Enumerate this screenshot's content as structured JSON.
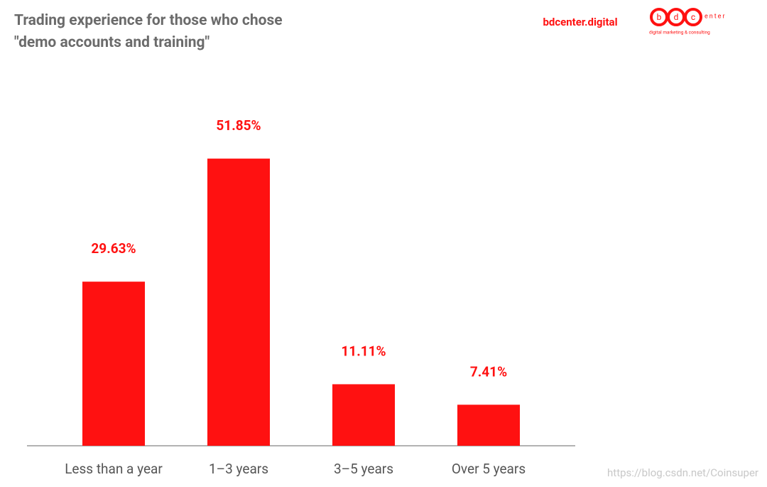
{
  "chart_data": {
    "type": "bar",
    "title": "Trading experience for those who chose \"demo accounts and training\"",
    "categories": [
      "Less than a year",
      "1–3 years",
      "3–5 years",
      "Over 5 years"
    ],
    "values": [
      29.63,
      51.85,
      11.11,
      7.41
    ],
    "value_labels": [
      "29.63%",
      "51.85%",
      "11.11%",
      "7.41%"
    ],
    "color": "#ff1111"
  },
  "brand": {
    "site": "bdcenter.digital",
    "logo_letters": [
      "b",
      "d",
      "c"
    ],
    "logo_suffix": "enter",
    "tagline": "digital marketing & consulting"
  },
  "watermark": "https://blog.csdn.net/Coinsuper"
}
